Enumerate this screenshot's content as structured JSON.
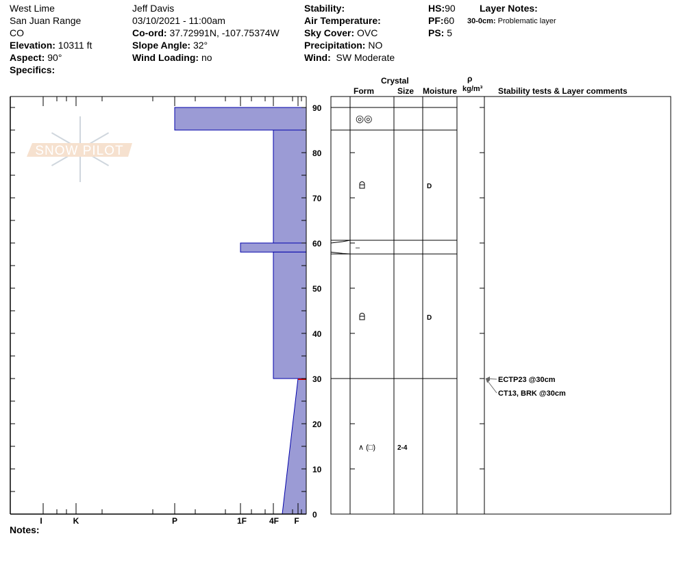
{
  "header": {
    "location": "West Lime",
    "range": "San Juan Range",
    "state": "CO",
    "elevation": {
      "label": "Elevation:",
      "value": "10311 ft"
    },
    "aspect": {
      "label": "Aspect:",
      "value": "90°"
    },
    "specifics": {
      "label": "Specifics:",
      "value": ""
    },
    "observer": "Jeff Davis",
    "datetime": "03/10/2021 - 11:00am",
    "coord": {
      "label": "Co-ord:",
      "value": "37.72991N, -107.75374W"
    },
    "slope_angle": {
      "label": "Slope Angle:",
      "value": "32°"
    },
    "wind_loading": {
      "label": "Wind Loading:",
      "value": "no"
    },
    "stability": {
      "label": "Stability:",
      "value": ""
    },
    "air_temperature": {
      "label": "Air Temperature:",
      "value": ""
    },
    "sky_cover": {
      "label": "Sky Cover:",
      "value": "OVC"
    },
    "precipitation": {
      "label": "Precipitation:",
      "value": "NO"
    },
    "wind": {
      "label": "Wind:",
      "value": "SW Moderate"
    },
    "hs": {
      "label": "HS:",
      "value": "90"
    },
    "pf": {
      "label": "PF:",
      "value": "60"
    },
    "ps": {
      "label": "PS:",
      "value": "5"
    },
    "layer_notes": {
      "label": "Layer Notes:",
      "items": [
        {
          "range": "30-0cm:",
          "text": "Problematic layer"
        }
      ]
    }
  },
  "table_headers": {
    "crystal": "Crystal",
    "form": "Form",
    "size": "Size",
    "moisture": "Moisture",
    "rho": "ρ",
    "density_unit": "kg/m³",
    "stability": "Stability tests & Layer comments"
  },
  "notes_label": "Notes:",
  "watermark": "SNOW PILOT",
  "colors": {
    "layer_fill": "#9b9bd5",
    "layer_stroke": "#0000aa",
    "weak_layer": "#cc0000"
  },
  "hardness_labels": [
    {
      "label": "I",
      "pos": 1
    },
    {
      "label": "K",
      "pos": 2
    },
    {
      "label": "P",
      "pos": 3
    },
    {
      "label": "1F",
      "pos": 4
    },
    {
      "label": "4F",
      "pos": 5
    },
    {
      "label": "F",
      "pos": 6
    }
  ],
  "depth_ticks": [
    "0",
    "10",
    "20",
    "30",
    "40",
    "50",
    "60",
    "70",
    "80",
    "90"
  ],
  "layers": [
    {
      "top": 90,
      "bottom": 85,
      "hardness_top": "P",
      "hardness_bottom": "P",
      "form": "◎◎",
      "size": "",
      "moisture": ""
    },
    {
      "top": 85,
      "bottom": 60,
      "hardness_top": "4F",
      "hardness_bottom": "4F",
      "form": "rounding-faceted",
      "size": "",
      "moisture": "D"
    },
    {
      "top": 60,
      "bottom": 58,
      "hardness_top": "1F",
      "hardness_bottom": "1F",
      "form": "–",
      "size": "",
      "moisture": ""
    },
    {
      "top": 58,
      "bottom": 30,
      "hardness_top": "4F",
      "hardness_bottom": "4F",
      "form": "rounding-faceted",
      "size": "",
      "moisture": "D"
    },
    {
      "top": 30,
      "bottom": 0,
      "hardness_top": "F-",
      "hardness_bottom": "4F+",
      "form": "∧ (□)",
      "size": "2-4",
      "moisture": ""
    }
  ],
  "stability_tests": [
    {
      "text": "ECTP23 @30cm",
      "depth": 30
    },
    {
      "text": "CT13, BRK @30cm",
      "depth": 30
    }
  ]
}
